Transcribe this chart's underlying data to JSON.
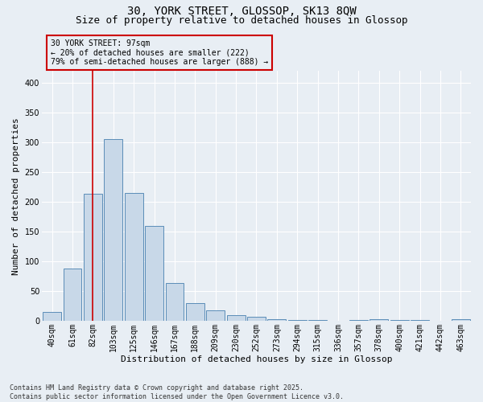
{
  "title_line1": "30, YORK STREET, GLOSSOP, SK13 8QW",
  "title_line2": "Size of property relative to detached houses in Glossop",
  "xlabel": "Distribution of detached houses by size in Glossop",
  "ylabel": "Number of detached properties",
  "categories": [
    "40sqm",
    "61sqm",
    "82sqm",
    "103sqm",
    "125sqm",
    "146sqm",
    "167sqm",
    "188sqm",
    "209sqm",
    "230sqm",
    "252sqm",
    "273sqm",
    "294sqm",
    "315sqm",
    "336sqm",
    "357sqm",
    "378sqm",
    "400sqm",
    "421sqm",
    "442sqm",
    "463sqm"
  ],
  "values": [
    15,
    88,
    213,
    305,
    215,
    160,
    63,
    30,
    17,
    10,
    6,
    2,
    1,
    1,
    0,
    1,
    3,
    1,
    1,
    0,
    2
  ],
  "bar_color": "#c8d8e8",
  "bar_edge_color": "#5b8db8",
  "vline_color": "#cc0000",
  "vline_x_index": 2,
  "annotation_text": "30 YORK STREET: 97sqm\n← 20% of detached houses are smaller (222)\n79% of semi-detached houses are larger (888) →",
  "annotation_box_edgecolor": "#cc0000",
  "ylim": [
    0,
    420
  ],
  "yticks": [
    0,
    50,
    100,
    150,
    200,
    250,
    300,
    350,
    400
  ],
  "background_color": "#e8eef4",
  "footer_text": "Contains HM Land Registry data © Crown copyright and database right 2025.\nContains public sector information licensed under the Open Government Licence v3.0.",
  "grid_color": "#ffffff",
  "title_fontsize": 10,
  "subtitle_fontsize": 9,
  "tick_fontsize": 7,
  "ylabel_fontsize": 8,
  "xlabel_fontsize": 8,
  "annotation_fontsize": 7,
  "footer_fontsize": 6
}
